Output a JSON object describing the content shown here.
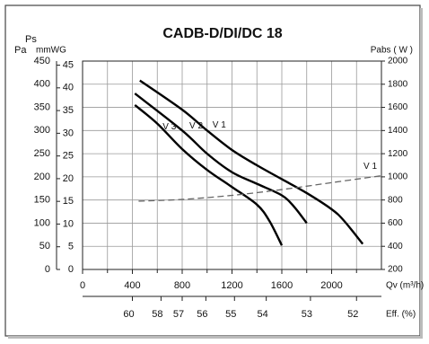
{
  "chart_data": {
    "type": "line",
    "title": "CADB-D/DI/DC 18",
    "y_label_top": "Ps",
    "y_label": "Pa",
    "y_mid_label": "mmWG",
    "y2_label": "Pabs ( W )",
    "x_label": "Qv (m³/h)",
    "xlim": [
      0,
      2400
    ],
    "xticks": [
      0,
      400,
      800,
      1200,
      1600,
      2000
    ],
    "xgrid": [
      200,
      600,
      1000,
      1400,
      1800,
      2200
    ],
    "ylim": [
      0,
      450
    ],
    "yticks": [
      0,
      50,
      100,
      150,
      200,
      250,
      300,
      350,
      400,
      450
    ],
    "ymidlim": [
      0,
      45.9
    ],
    "ymidticks": [
      0,
      5,
      10,
      15,
      20,
      25,
      30,
      35,
      40,
      45
    ],
    "y2lim": [
      200,
      2000
    ],
    "y2ticks": [
      200,
      400,
      600,
      800,
      1000,
      1200,
      1400,
      1600,
      1800,
      2000
    ],
    "grid": true,
    "eff_axis": {
      "label": "Eff. (%)",
      "ticks": [
        {
          "value": 60,
          "qv": 400
        },
        {
          "value": 58,
          "qv": 630
        },
        {
          "value": 57,
          "qv": 800
        },
        {
          "value": 56,
          "qv": 990
        },
        {
          "value": 55,
          "qv": 1220
        },
        {
          "value": 54,
          "qv": 1475
        },
        {
          "value": 53,
          "qv": 1830
        },
        {
          "value": 52,
          "qv": 2200
        }
      ]
    },
    "series": [
      {
        "name": "V 1",
        "color": "#000000",
        "style": "solid",
        "x": [
          460,
          800,
          1000,
          1200,
          1400,
          1600,
          1800,
          2000,
          2100,
          2250
        ],
        "values": [
          408,
          345,
          300,
          258,
          225,
          195,
          165,
          130,
          105,
          55
        ]
      },
      {
        "name": "V 2",
        "color": "#000000",
        "style": "solid",
        "x": [
          420,
          800,
          1000,
          1200,
          1400,
          1600,
          1700,
          1800
        ],
        "values": [
          380,
          300,
          250,
          210,
          185,
          160,
          135,
          100
        ]
      },
      {
        "name": "V 3",
        "color": "#000000",
        "style": "solid",
        "x": [
          420,
          600,
          800,
          1000,
          1200,
          1400,
          1500,
          1600
        ],
        "values": [
          355,
          315,
          260,
          215,
          178,
          140,
          105,
          52
        ]
      },
      {
        "name": "V 1",
        "color": "#666666",
        "style": "dashed",
        "axis": "y2",
        "x": [
          450,
          800,
          1200,
          1600,
          2000,
          2400
        ],
        "values": [
          790,
          805,
          840,
          890,
          950,
          1010
        ]
      }
    ]
  }
}
